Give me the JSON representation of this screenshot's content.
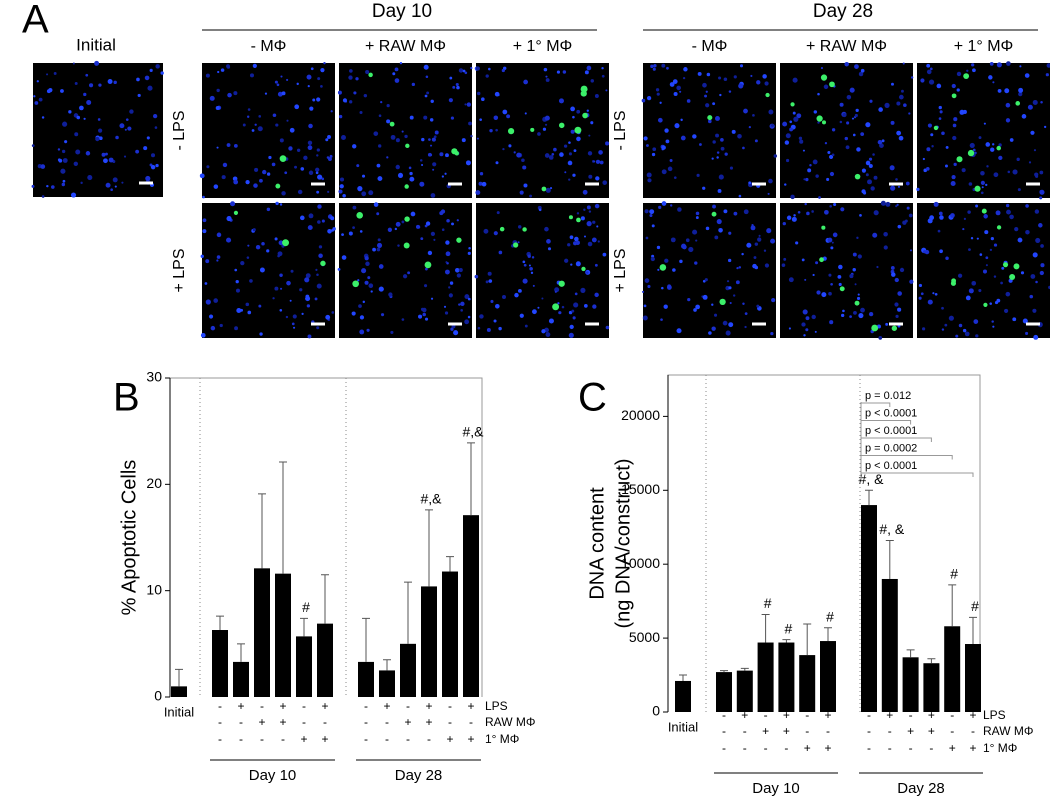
{
  "panel_a": {
    "label": "A",
    "initial_title": "Initial",
    "groups": [
      {
        "title": "Day 10",
        "columns": [
          "- MΦ",
          "+ RAW MΦ",
          "+ 1° MΦ"
        ],
        "rows": [
          "- LPS",
          "+ LPS"
        ]
      },
      {
        "title": "Day 28",
        "columns": [
          "- MΦ",
          "+ RAW MΦ",
          "+ 1° MΦ"
        ],
        "rows": [
          "- LPS",
          "+ LPS"
        ]
      }
    ]
  },
  "chart_data": [
    {
      "type": "bar",
      "panel_label": "B",
      "ylabel": "% Apoptotic Cells",
      "ylim": [
        0,
        30
      ],
      "yticks": [
        0,
        10,
        20,
        30
      ],
      "color": "#000000",
      "categories": [
        "Initial",
        null,
        null,
        null,
        null,
        null,
        null,
        null,
        null,
        null,
        null,
        null,
        null
      ],
      "values": [
        1.0,
        6.3,
        3.3,
        12.1,
        11.6,
        5.7,
        6.9,
        3.3,
        2.5,
        5.0,
        10.4,
        11.8,
        17.1
      ],
      "errors": [
        1.6,
        1.3,
        1.7,
        7.0,
        10.5,
        1.7,
        4.6,
        4.1,
        1.0,
        5.8,
        7.2,
        1.4,
        6.8
      ],
      "annotations": [
        null,
        null,
        null,
        null,
        null,
        "#",
        null,
        null,
        null,
        null,
        "#,&",
        null,
        "#,&"
      ],
      "conditions": [
        {
          "name": "LPS",
          "signs": [
            null,
            "-",
            "+",
            "-",
            "+",
            "-",
            "+",
            "-",
            "+",
            "-",
            "+",
            "-",
            "+"
          ]
        },
        {
          "name": "RAW MΦ",
          "signs": [
            null,
            "-",
            "-",
            "+",
            "+",
            "-",
            "-",
            "-",
            "-",
            "+",
            "+",
            "-",
            "-"
          ]
        },
        {
          "name": "1° MΦ",
          "signs": [
            null,
            "-",
            "-",
            "-",
            "-",
            "+",
            "+",
            "-",
            "-",
            "-",
            "-",
            "+",
            "+"
          ]
        }
      ],
      "groups": [
        "Day 10",
        "Day 28"
      ]
    },
    {
      "type": "bar",
      "panel_label": "C",
      "ylabel": [
        "DNA content",
        "(ng DNA/construct)"
      ],
      "ylim": [
        0,
        22800
      ],
      "yticks": [
        0,
        5000,
        10000,
        15000,
        20000
      ],
      "color": "#000000",
      "categories": [
        "Initial",
        null,
        null,
        null,
        null,
        null,
        null,
        null,
        null,
        null,
        null,
        null,
        null
      ],
      "values": [
        2100,
        2700,
        2800,
        4700,
        4700,
        3850,
        4800,
        14000,
        9000,
        3700,
        3300,
        5800,
        4600
      ],
      "errors": [
        400,
        100,
        150,
        1900,
        200,
        2100,
        900,
        1000,
        2600,
        500,
        300,
        2800,
        1800
      ],
      "annotations": [
        null,
        null,
        null,
        "#",
        "#",
        null,
        "#",
        "#, &",
        "#, &",
        null,
        null,
        "#",
        "#"
      ],
      "conditions": [
        {
          "name": "LPS",
          "signs": [
            null,
            "-",
            "+",
            "-",
            "+",
            "-",
            "+",
            "-",
            "+",
            "-",
            "+",
            "-",
            "+"
          ]
        },
        {
          "name": "RAW MΦ",
          "signs": [
            null,
            "-",
            "-",
            "+",
            "+",
            "-",
            "-",
            "-",
            "-",
            "+",
            "+",
            "-",
            "-"
          ]
        },
        {
          "name": "1° MΦ",
          "signs": [
            null,
            "-",
            "-",
            "-",
            "-",
            "+",
            "+",
            "-",
            "-",
            "-",
            "-",
            "+",
            "+"
          ]
        }
      ],
      "groups": [
        "Day 10",
        "Day 28"
      ],
      "comparisons": [
        "p = 0.012",
        "p < 0.0001",
        "p < 0.0001",
        "p = 0.0002",
        "p < 0.0001"
      ]
    }
  ]
}
